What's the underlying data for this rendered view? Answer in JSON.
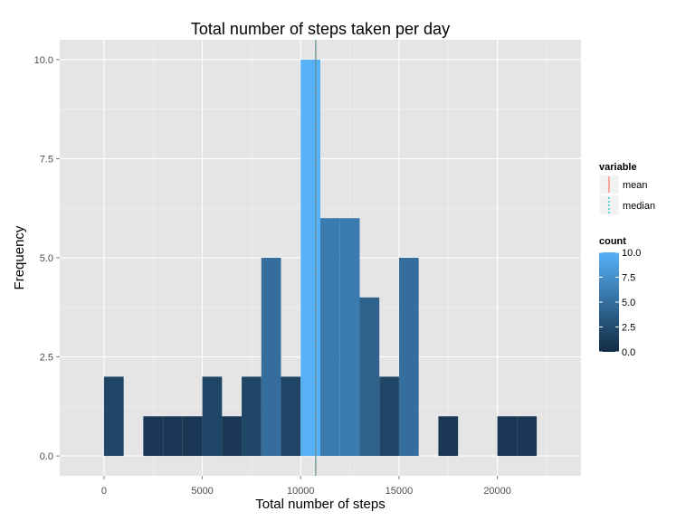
{
  "chart_data": {
    "type": "bar",
    "title": "Total number of steps taken per day",
    "xlabel": "Total number of steps",
    "ylabel": "Frequency",
    "xlim": [
      -2250,
      24250
    ],
    "ylim": [
      -0.5,
      10.5
    ],
    "x_ticks": [
      0,
      5000,
      10000,
      15000,
      20000
    ],
    "x_tick_labels": [
      "0",
      "5000",
      "10000",
      "15000",
      "20000"
    ],
    "y_ticks": [
      0,
      2.5,
      5,
      7.5,
      10
    ],
    "y_tick_labels": [
      "0.0",
      "2.5",
      "5.0",
      "7.5",
      "10.0"
    ],
    "grid": true,
    "bin_width": 1000,
    "bins": [
      {
        "x": 0,
        "count": 2
      },
      {
        "x": 2000,
        "count": 1
      },
      {
        "x": 3000,
        "count": 1
      },
      {
        "x": 4000,
        "count": 1
      },
      {
        "x": 5000,
        "count": 2
      },
      {
        "x": 6000,
        "count": 1
      },
      {
        "x": 7000,
        "count": 2
      },
      {
        "x": 8000,
        "count": 5
      },
      {
        "x": 9000,
        "count": 2
      },
      {
        "x": 10000,
        "count": 10
      },
      {
        "x": 11000,
        "count": 6
      },
      {
        "x": 12000,
        "count": 6
      },
      {
        "x": 13000,
        "count": 4
      },
      {
        "x": 14000,
        "count": 2
      },
      {
        "x": 15000,
        "count": 5
      },
      {
        "x": 17000,
        "count": 1
      },
      {
        "x": 20000,
        "count": 1
      },
      {
        "x": 21000,
        "count": 1
      }
    ],
    "vlines": [
      {
        "name": "mean",
        "value": 10766,
        "color": "#f8766d",
        "style": "solid"
      },
      {
        "name": "median",
        "value": 10765,
        "color": "#00bfc4",
        "style": "dotted"
      }
    ],
    "legend": {
      "placement": "right",
      "variable_title": "variable",
      "variable_items": [
        "mean",
        "median"
      ],
      "count_title": "count",
      "count_ticks": [
        0,
        2.5,
        5,
        7.5,
        10
      ],
      "count_tick_labels": [
        "0.0",
        "2.5",
        "5.0",
        "7.5",
        "10.0"
      ],
      "color_low": "#132b43",
      "color_high": "#56b1f7"
    },
    "panel_color": "#e5e5e5",
    "vline_overlay_color": "#808080"
  }
}
